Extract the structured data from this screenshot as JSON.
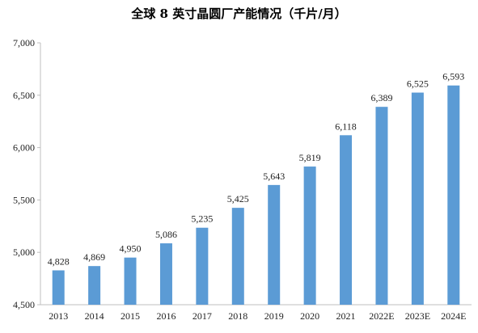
{
  "chart_data": {
    "type": "bar",
    "title": "全球 8 英寸晶圆厂产能情况（千片/月）",
    "categories": [
      "2013",
      "2014",
      "2015",
      "2016",
      "2017",
      "2018",
      "2019",
      "2020",
      "2021",
      "2022E",
      "2023E",
      "2024E"
    ],
    "values": [
      4828,
      4869,
      4950,
      5086,
      5235,
      5425,
      5643,
      5819,
      6118,
      6389,
      6525,
      6593
    ],
    "value_labels": [
      "4,828",
      "4,869",
      "4,950",
      "5,086",
      "5,235",
      "5,425",
      "5,643",
      "5,819",
      "6,118",
      "6,389",
      "6,525",
      "6,593"
    ],
    "ylim": [
      4500,
      7000
    ],
    "yticks": [
      4500,
      5000,
      5500,
      6000,
      6500,
      7000
    ],
    "ytick_labels": [
      "4,500",
      "5,000",
      "5,500",
      "6,000",
      "6,500",
      "7,000"
    ],
    "xlabel": "",
    "ylabel": "",
    "grid": false,
    "legend": "none",
    "bar_color": "#5b9bd5",
    "axis_color": "#bfbfbf"
  }
}
